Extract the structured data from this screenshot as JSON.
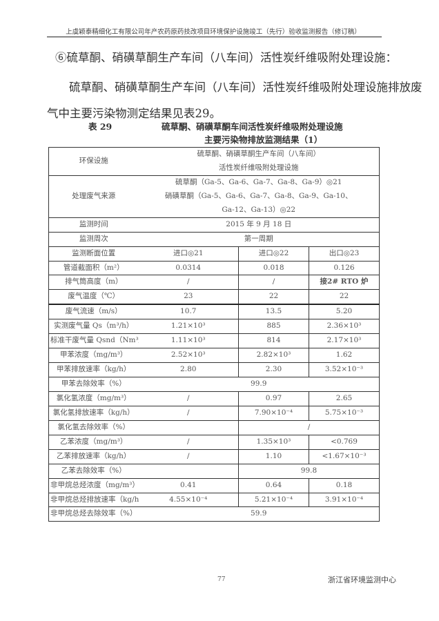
{
  "header": {
    "text": "上虞颖泰精细化工有限公司年产农药原药技改项目环境保护设施竣工（先行）验收监测报告（修订稿）"
  },
  "section_heading": "⑥硫草酮、硝磺草酮生产车间（八车间）活性炭纤维吸附处理设施：",
  "paragraph": {
    "line1": "硫草酮、硝磺草酮生产车间（八车间）活性炭纤维吸附处理设施排放废",
    "line2": "气中主要污染物测定结果见表29。"
  },
  "table_caption": {
    "number": "表 29",
    "title_line1": "硫草酮、硝磺草酮车间活性炭纤维吸附处理设施",
    "title_line2": "主要污染物排放监测结果（1）"
  },
  "table": {
    "rows": [
      {
        "label": "环保设施",
        "span": "all",
        "cells": [
          "硫草酮、硝磺草酮生产车间（八车间）\n活性炭纤维吸附处理设施"
        ]
      },
      {
        "label": "处理废气来源",
        "span": "all",
        "cells": [
          "硫草酮（Ga-5、Ga-6、Ga-7、Ga-8、Ga-9）◎21\n硝磺草酮（Ga-5、Ga-6、Ga-7、Ga-8、Ga-9、Ga-10、\nGa-12、Ga-13）◎22"
        ]
      },
      {
        "label": "监测时间",
        "span": "all",
        "cells": [
          "2015 年 9 月 18 日"
        ]
      },
      {
        "label": "监测周次",
        "span": "all",
        "cells": [
          "第一周期"
        ]
      },
      {
        "label": "监测断面位置",
        "cells": [
          "进口◎21",
          "进口◎22",
          "出口◎23"
        ]
      },
      {
        "label": "管道截面积（m²）",
        "cells": [
          "0.0314",
          "0.018",
          "0.126"
        ]
      },
      {
        "label": "排气筒高度（m）",
        "cells": [
          "/",
          "/",
          "接2# RTO 炉"
        ],
        "bold_last": true
      },
      {
        "label": "废气温度（℃）",
        "cells": [
          "23",
          "22",
          "22"
        ],
        "thick": true
      },
      {
        "label": "废气流速（m/s）",
        "cells": [
          "10.7",
          "13.5",
          "5.20"
        ]
      },
      {
        "label": "实测废气量 Qs（m³/h）",
        "cells": [
          "1.21×10³",
          "885",
          "2.36×10³"
        ]
      },
      {
        "label": "标准干废气量 Qsnd（Nm³/h）",
        "cells": [
          "1.11×10³",
          "814",
          "2.17×10³"
        ]
      },
      {
        "label": "甲苯浓度（mg/m³）",
        "cells": [
          "2.52×10³",
          "2.82×10³",
          "1.62"
        ]
      },
      {
        "label": "甲苯排放速率（kg/h）",
        "cells": [
          "2.80",
          "2.30",
          "3.52×10⁻³"
        ]
      },
      {
        "label": "甲苯去除效率（%）",
        "span": "all",
        "cells": [
          "99.9"
        ]
      },
      {
        "label": "氯化氢浓度（mg/m³）",
        "cells": [
          "/",
          "0.97",
          "2.65"
        ]
      },
      {
        "label": "氯化氢排放速率（kg/h）",
        "cells": [
          "/",
          "7.90×10⁻⁴",
          "5.75×10⁻³"
        ]
      },
      {
        "label": "氯化氢去除效率（%）",
        "span": "last2",
        "cells": [
          "",
          "/"
        ]
      },
      {
        "label": "乙苯浓度（mg/m³）",
        "cells": [
          "/",
          "1.35×10³",
          "<0.769"
        ]
      },
      {
        "label": "乙苯排放速率（kg/h）",
        "cells": [
          "/",
          "1.10",
          "<1.67×10⁻³"
        ]
      },
      {
        "label": "乙苯去除效率（%）",
        "span": "last2",
        "cells": [
          "",
          "99.8"
        ]
      },
      {
        "label": "非甲烷总烃浓度（mg/m³）",
        "cells": [
          "0.41",
          "0.64",
          "0.18"
        ]
      },
      {
        "label": "非甲烷总烃排放速率（kg/h）",
        "cells": [
          "4.55×10⁻⁴",
          "5.21×10⁻⁴",
          "3.91×10⁻⁴"
        ]
      },
      {
        "label": "非甲烷总烃去除效率（%）",
        "span": "all",
        "cells": [
          "59.9"
        ]
      }
    ]
  },
  "footer": {
    "page": "77",
    "org": "浙江省环境监测中心"
  }
}
